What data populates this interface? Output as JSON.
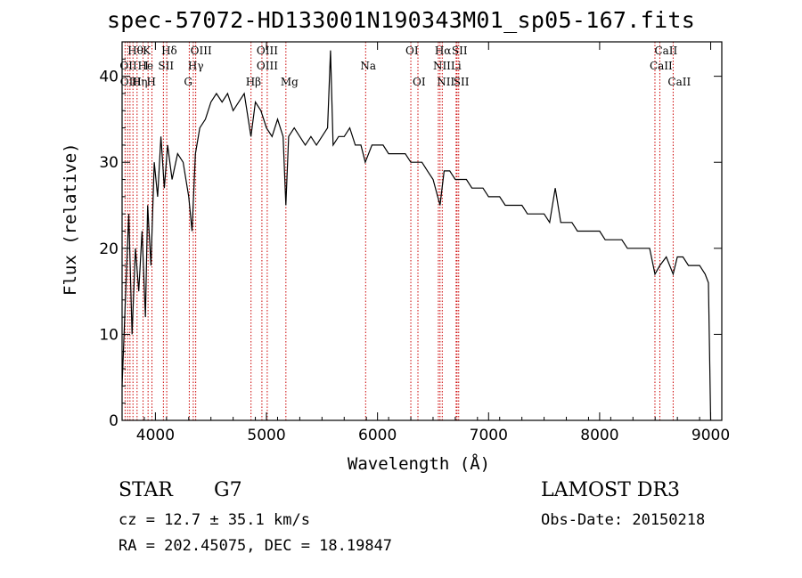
{
  "chart_data": {
    "type": "line",
    "title": "spec-57072-HD133001N190343M01_sp05-167.fits",
    "xlabel": "Wavelength (Å)",
    "ylabel": "Flux (relative)",
    "xlim": [
      3700,
      9100
    ],
    "ylim": [
      0,
      44
    ],
    "xticks": [
      4000,
      5000,
      6000,
      7000,
      8000,
      9000
    ],
    "yticks": [
      0,
      10,
      20,
      30,
      40
    ],
    "series": [
      {
        "name": "spectrum",
        "x": [
          3700,
          3730,
          3760,
          3790,
          3820,
          3850,
          3880,
          3910,
          3930,
          3960,
          3990,
          4020,
          4050,
          4080,
          4110,
          4150,
          4200,
          4250,
          4300,
          4330,
          4360,
          4400,
          4450,
          4500,
          4550,
          4600,
          4650,
          4700,
          4750,
          4800,
          4860,
          4900,
          4950,
          5000,
          5050,
          5100,
          5150,
          5175,
          5200,
          5250,
          5300,
          5350,
          5400,
          5450,
          5500,
          5550,
          5577,
          5600,
          5650,
          5700,
          5750,
          5800,
          5850,
          5890,
          5950,
          6000,
          6050,
          6100,
          6150,
          6200,
          6250,
          6300,
          6350,
          6400,
          6450,
          6500,
          6563,
          6600,
          6650,
          6700,
          6750,
          6800,
          6850,
          6900,
          6950,
          7000,
          7050,
          7100,
          7150,
          7200,
          7250,
          7300,
          7350,
          7400,
          7450,
          7500,
          7550,
          7600,
          7650,
          7700,
          7750,
          7800,
          7850,
          7900,
          7950,
          8000,
          8050,
          8100,
          8150,
          8200,
          8250,
          8300,
          8350,
          8400,
          8450,
          8498,
          8542,
          8600,
          8662,
          8700,
          8750,
          8800,
          8850,
          8900,
          8950,
          8980,
          9000
        ],
        "values": [
          4,
          14,
          24,
          10,
          20,
          15,
          22,
          12,
          25,
          18,
          30,
          26,
          33,
          27,
          32,
          28,
          31,
          30,
          26,
          22,
          31,
          34,
          35,
          37,
          38,
          37,
          38,
          36,
          37,
          38,
          33,
          37,
          36,
          34,
          33,
          35,
          33,
          25,
          33,
          34,
          33,
          32,
          33,
          32,
          33,
          34,
          43,
          32,
          33,
          33,
          34,
          32,
          32,
          30,
          32,
          32,
          32,
          31,
          31,
          31,
          31,
          30,
          30,
          30,
          29,
          28,
          25,
          29,
          29,
          28,
          28,
          28,
          27,
          27,
          27,
          26,
          26,
          26,
          25,
          25,
          25,
          25,
          24,
          24,
          24,
          24,
          23,
          27,
          23,
          23,
          23,
          22,
          22,
          22,
          22,
          22,
          21,
          21,
          21,
          21,
          20,
          20,
          20,
          20,
          20,
          17,
          18,
          19,
          17,
          19,
          19,
          18,
          18,
          18,
          17,
          16,
          0
        ]
      }
    ],
    "line_labels": [
      {
        "text": "Hθ",
        "x": 3798,
        "row": 1
      },
      {
        "text": "OII",
        "x": 3727,
        "row": 2
      },
      {
        "text": "OIII",
        "x": 3730,
        "row": 3
      },
      {
        "text": "Hη",
        "x": 3835,
        "row": 3
      },
      {
        "text": "K",
        "x": 3934,
        "row": 1
      },
      {
        "text": "He",
        "x": 3889,
        "row": 2
      },
      {
        "text": "I",
        "x": 3950,
        "row": 2
      },
      {
        "text": "SII",
        "x": 4072,
        "row": 2
      },
      {
        "text": "H",
        "x": 3969,
        "row": 3
      },
      {
        "text": "Hδ",
        "x": 4102,
        "row": 1
      },
      {
        "text": "OIII",
        "x": 4363,
        "row": 1
      },
      {
        "text": "Hγ",
        "x": 4341,
        "row": 2
      },
      {
        "text": "G",
        "x": 4305,
        "row": 3
      },
      {
        "text": "Hβ",
        "x": 4861,
        "row": 3
      },
      {
        "text": "OIII",
        "x": 4959,
        "row": 1
      },
      {
        "text": "OIII",
        "x": 4959,
        "row": 2
      },
      {
        "text": "Mg",
        "x": 5175,
        "row": 3
      },
      {
        "text": "Na",
        "x": 5893,
        "row": 2
      },
      {
        "text": "OI",
        "x": 6300,
        "row": 1
      },
      {
        "text": "OI",
        "x": 6364,
        "row": 3
      },
      {
        "text": "Hα",
        "x": 6563,
        "row": 1
      },
      {
        "text": "NII",
        "x": 6548,
        "row": 2
      },
      {
        "text": "NII",
        "x": 6583,
        "row": 3
      },
      {
        "text": "SII",
        "x": 6716,
        "row": 1
      },
      {
        "text": "Li",
        "x": 6708,
        "row": 2
      },
      {
        "text": "SII",
        "x": 6731,
        "row": 3
      },
      {
        "text": "CaII",
        "x": 8542,
        "row": 1
      },
      {
        "text": "CaII",
        "x": 8498,
        "row": 2
      },
      {
        "text": "CaII",
        "x": 8662,
        "row": 3
      }
    ],
    "line_markers_x": [
      3727,
      3750,
      3771,
      3798,
      3835,
      3889,
      3934,
      3969,
      4072,
      4102,
      4305,
      4341,
      4363,
      4861,
      4959,
      5007,
      5175,
      5893,
      6300,
      6364,
      6548,
      6563,
      6583,
      6708,
      6716,
      6731,
      8498,
      8542,
      8662
    ],
    "colors": {
      "spectrum": "#000000",
      "markers": "#cc0000",
      "axes": "#000000"
    }
  },
  "info": {
    "obj_class": "STAR",
    "subclass": "G7",
    "survey": "LAMOST DR3",
    "cz": "cz = 12.7 ± 35.1 km/s",
    "obs_date": "Obs-Date: 20150218",
    "radec": "RA = 202.45075, DEC =  18.19847"
  }
}
